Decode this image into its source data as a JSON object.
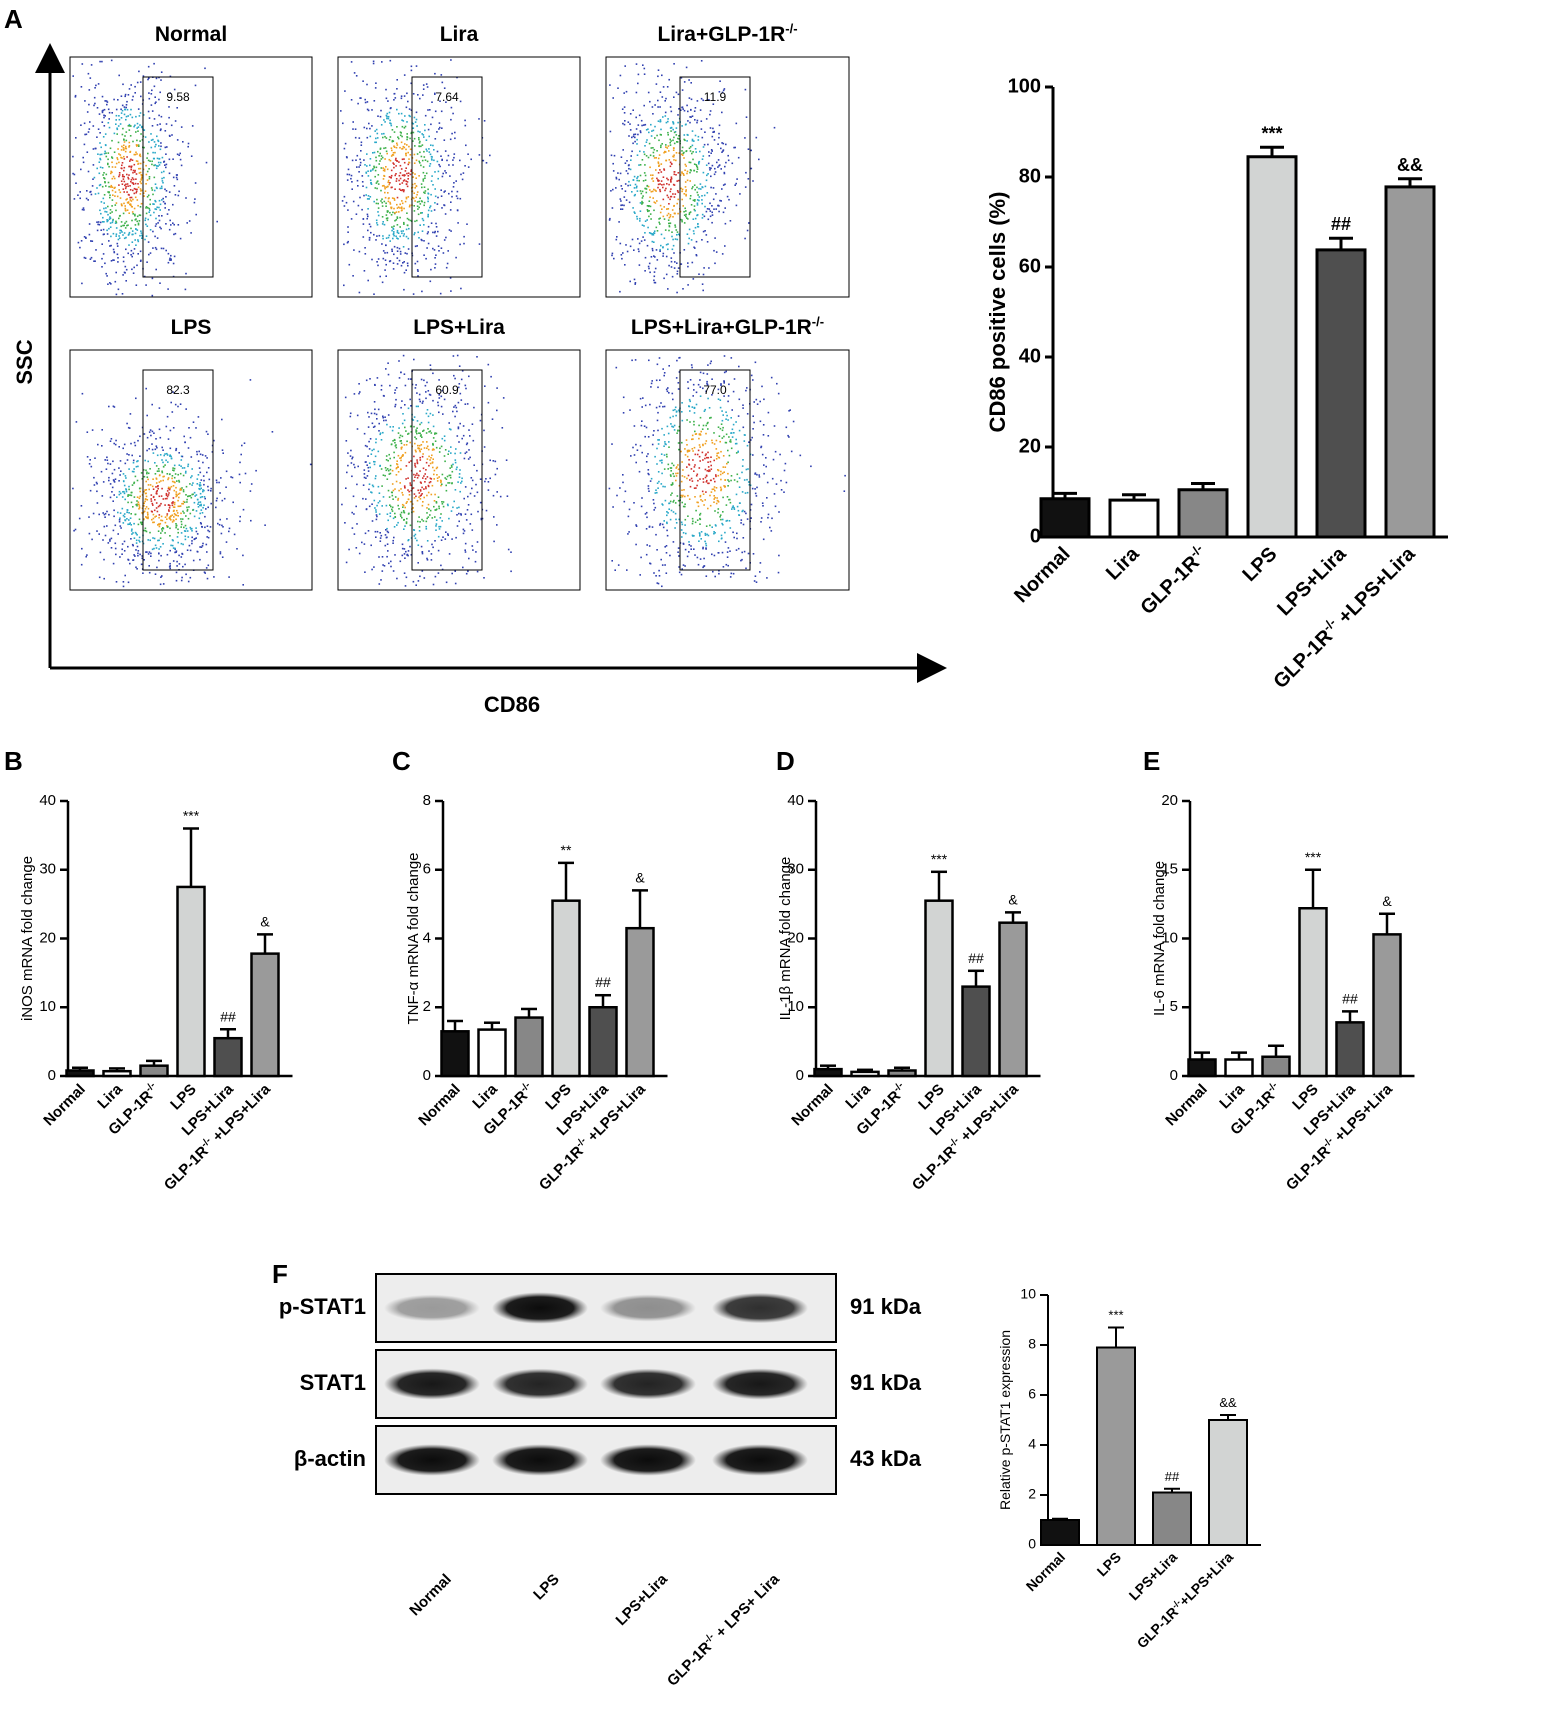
{
  "colors": {
    "black": "#111111",
    "white": "#ffffff",
    "gray": "#878787",
    "lightgray": "#d2d4d3",
    "darkgray": "#4f4f4f",
    "midgray": "#9a9a9a"
  },
  "panelA": {
    "letter": "A",
    "x_label": "CD86",
    "y_label": "SSC",
    "plots": [
      {
        "title": "Normal",
        "gate_value": "9.58",
        "level": 0.1
      },
      {
        "title": "Lira",
        "gate_value": "7.64",
        "level": 0.08
      },
      {
        "title": "Lira+GLP-1R",
        "title_sup": "-/-",
        "gate_value": "11.9",
        "level": 0.12
      },
      {
        "title": "LPS",
        "gate_value": "82.3",
        "level": 0.82
      },
      {
        "title": "LPS+Lira",
        "gate_value": "60.9",
        "level": 0.61
      },
      {
        "title": "LPS+Lira+GLP-1R",
        "title_sup": "-/-",
        "gate_value": "77.0",
        "level": 0.77
      }
    ]
  },
  "chart_data": [
    {
      "id": "A-bar",
      "type": "bar",
      "title": "",
      "xlabel": "",
      "ylabel": "CD86 positive cells (%)",
      "ylim": [
        0,
        100
      ],
      "yticks": [
        0,
        20,
        40,
        60,
        80,
        100
      ],
      "categories": [
        "Normal",
        "Lira",
        "GLP-1R",
        "LPS",
        "LPS+Lira",
        "GLP-1R"
      ],
      "category_sup": [
        "",
        "",
        "-/-",
        "",
        "",
        "-/-"
      ],
      "category_suffix": [
        "",
        "",
        "",
        "",
        "",
        " +LPS+Lira"
      ],
      "values": [
        8.5,
        8.2,
        10.5,
        84.5,
        63.8,
        77.8
      ],
      "errors": [
        1.2,
        1.2,
        1.4,
        2.1,
        2.6,
        1.8
      ],
      "fills": [
        "black",
        "white",
        "gray",
        "lightgray",
        "darkgray",
        "midgray"
      ],
      "annotations": [
        "",
        "",
        "",
        "***",
        "##",
        "&&"
      ],
      "grid": false,
      "legend": "none"
    },
    {
      "id": "B",
      "letter": "B",
      "type": "bar",
      "title": "",
      "xlabel": "",
      "ylabel": "iNOS mRNA fold change",
      "ylim": [
        0,
        40
      ],
      "yticks": [
        0,
        10,
        20,
        30,
        40
      ],
      "categories": [
        "Normal",
        "Lira",
        "GLP-1R",
        "LPS",
        "LPS+Lira",
        "GLP-1R"
      ],
      "category_sup": [
        "",
        "",
        "-/-",
        "",
        "",
        "-/-"
      ],
      "category_suffix": [
        "",
        "",
        "",
        "",
        "",
        " +LPS+Lira"
      ],
      "values": [
        0.8,
        0.7,
        1.5,
        27.5,
        5.5,
        17.8
      ],
      "errors": [
        0.4,
        0.4,
        0.7,
        8.5,
        1.3,
        2.8
      ],
      "fills": [
        "black",
        "white",
        "gray",
        "lightgray",
        "darkgray",
        "midgray"
      ],
      "annotations": [
        "",
        "",
        "",
        "***",
        "##",
        "&"
      ],
      "grid": false,
      "legend": "none"
    },
    {
      "id": "C",
      "letter": "C",
      "type": "bar",
      "title": "",
      "xlabel": "",
      "ylabel": "TNF-α mRNA fold change",
      "ylim": [
        0,
        8
      ],
      "yticks": [
        0,
        2,
        4,
        6,
        8
      ],
      "categories": [
        "Normal",
        "Lira",
        "GLP-1R",
        "LPS",
        "LPS+Lira",
        "GLP-1R"
      ],
      "category_sup": [
        "",
        "",
        "-/-",
        "",
        "",
        "-/-"
      ],
      "category_suffix": [
        "",
        "",
        "",
        "",
        "",
        " +LPS+Lira"
      ],
      "values": [
        1.3,
        1.35,
        1.7,
        5.1,
        2.0,
        4.3
      ],
      "errors": [
        0.3,
        0.2,
        0.25,
        1.1,
        0.35,
        1.1
      ],
      "fills": [
        "black",
        "white",
        "gray",
        "lightgray",
        "darkgray",
        "midgray"
      ],
      "annotations": [
        "",
        "",
        "",
        "**",
        "##",
        "&"
      ],
      "grid": false,
      "legend": "none"
    },
    {
      "id": "D",
      "letter": "D",
      "type": "bar",
      "title": "",
      "xlabel": "",
      "ylabel": "IL-1β mRNA fold change",
      "ylim": [
        0,
        40
      ],
      "yticks": [
        0,
        10,
        20,
        30,
        40
      ],
      "categories": [
        "Normal",
        "Lira",
        "GLP-1R",
        "LPS",
        "LPS+Lira",
        "GLP-1R"
      ],
      "category_sup": [
        "",
        "",
        "-/-",
        "",
        "",
        "-/-"
      ],
      "category_suffix": [
        "",
        "",
        "",
        "",
        "",
        " +LPS+Lira"
      ],
      "values": [
        1.0,
        0.6,
        0.8,
        25.5,
        13.0,
        22.3
      ],
      "errors": [
        0.5,
        0.3,
        0.4,
        4.2,
        2.3,
        1.5
      ],
      "fills": [
        "black",
        "white",
        "gray",
        "lightgray",
        "darkgray",
        "midgray"
      ],
      "annotations": [
        "",
        "",
        "",
        "***",
        "##",
        "&"
      ],
      "grid": false,
      "legend": "none"
    },
    {
      "id": "E",
      "letter": "E",
      "type": "bar",
      "title": "",
      "xlabel": "",
      "ylabel": "IL-6 mRNA fold change",
      "ylim": [
        0,
        20
      ],
      "yticks": [
        0,
        5,
        10,
        15,
        20
      ],
      "categories": [
        "Normal",
        "Lira",
        "GLP-1R",
        "LPS",
        "LPS+Lira",
        "GLP-1R"
      ],
      "category_sup": [
        "",
        "",
        "-/-",
        "",
        "",
        "-/-"
      ],
      "category_suffix": [
        "",
        "",
        "",
        "",
        "",
        " +LPS+Lira"
      ],
      "values": [
        1.2,
        1.2,
        1.4,
        12.2,
        3.9,
        10.3
      ],
      "errors": [
        0.5,
        0.5,
        0.8,
        2.8,
        0.8,
        1.5
      ],
      "fills": [
        "black",
        "white",
        "gray",
        "lightgray",
        "darkgray",
        "midgray"
      ],
      "annotations": [
        "",
        "",
        "",
        "***",
        "##",
        "&"
      ],
      "grid": false,
      "legend": "none"
    },
    {
      "id": "F-bar",
      "type": "bar",
      "title": "",
      "xlabel": "",
      "ylabel": "Relative p-STAT1 expression",
      "ylim": [
        0,
        10
      ],
      "yticks": [
        0,
        2,
        4,
        6,
        8,
        10
      ],
      "categories": [
        "Normal",
        "LPS",
        "LPS+Lira",
        "GLP-1R"
      ],
      "category_sup": [
        "",
        "",
        "",
        "-/-"
      ],
      "category_suffix": [
        "",
        "",
        "",
        "+LPS+Lira"
      ],
      "values": [
        1.0,
        7.9,
        2.1,
        5.0
      ],
      "errors": [
        0.05,
        0.8,
        0.15,
        0.2
      ],
      "fills": [
        "black",
        "midgray",
        "gray",
        "lightgray"
      ],
      "annotations": [
        "",
        "***",
        "##",
        "&&"
      ],
      "grid": false,
      "legend": "none"
    }
  ],
  "panelF": {
    "letter": "F",
    "blot_rows": [
      {
        "label": "p-STAT1",
        "kda": "91 kDa",
        "intensity": [
          0.35,
          0.95,
          0.4,
          0.8
        ]
      },
      {
        "label": "STAT1",
        "kda": "91 kDa",
        "intensity": [
          0.9,
          0.85,
          0.85,
          0.9
        ]
      },
      {
        "label": "β-actin",
        "kda": "43 kDa",
        "intensity": [
          0.95,
          0.95,
          0.95,
          0.95
        ]
      }
    ],
    "lanes": [
      {
        "label": "Normal"
      },
      {
        "label": "LPS"
      },
      {
        "label": "LPS+Lira"
      },
      {
        "label": "GLP-1R",
        "sup": "-/-",
        "suffix": " + LPS+ Lira"
      }
    ]
  }
}
